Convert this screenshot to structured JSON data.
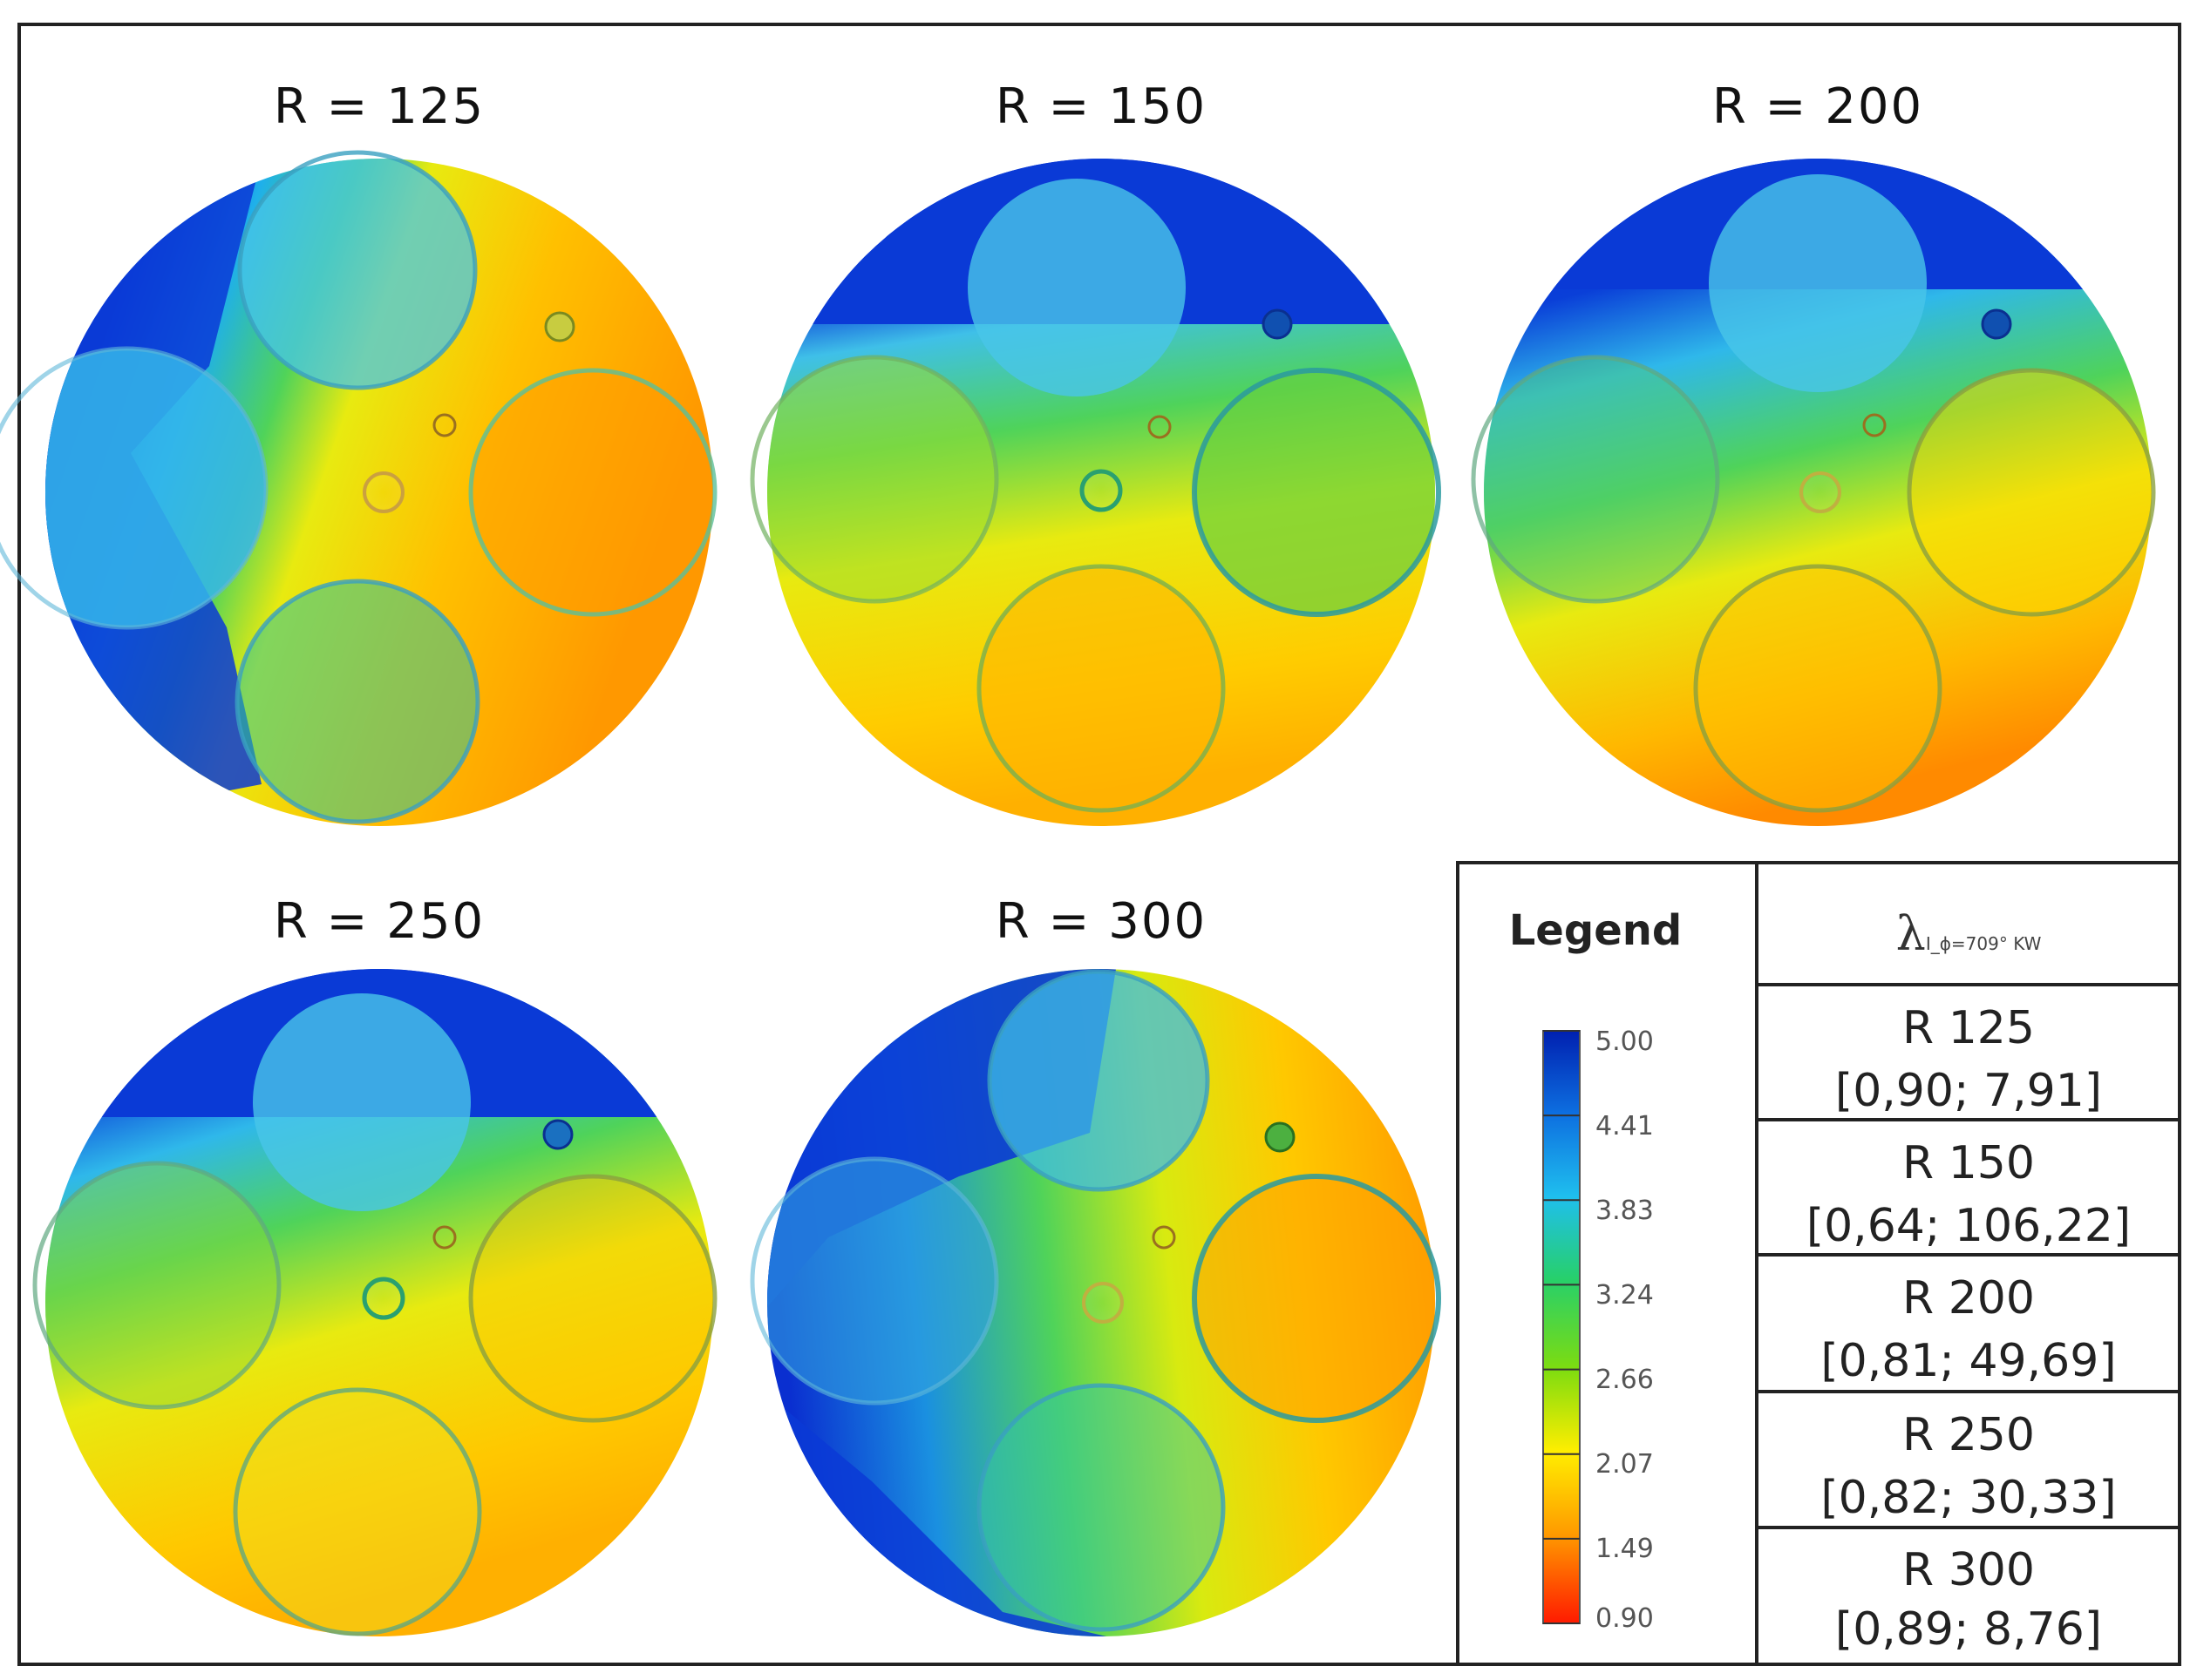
{
  "panels": [
    {
      "title": "R = 125"
    },
    {
      "title": "R = 150"
    },
    {
      "title": "R = 200"
    },
    {
      "title": "R = 250"
    },
    {
      "title": "R = 300"
    }
  ],
  "legend": {
    "title": "Legend",
    "ticks": [
      "5.00",
      "4.41",
      "3.83",
      "3.24",
      "2.66",
      "2.07",
      "1.49",
      "0.90"
    ],
    "colors": [
      "#0033cc",
      "#0d7fe0",
      "#1fc0ee",
      "#27d06a",
      "#7ddc10",
      "#ffee00",
      "#ff9a00",
      "#ff1a00"
    ]
  },
  "table": {
    "header_symbol": "λ",
    "header_subscript": "I_ϕ=709° KW",
    "rows": [
      {
        "name": "R 125",
        "range": "[0,90; 7,91]"
      },
      {
        "name": "R 150",
        "range": "[0,64; 106,22]"
      },
      {
        "name": "R 200",
        "range": "[0,81; 49,69]"
      },
      {
        "name": "R 250",
        "range": "[0,82; 30,33]"
      },
      {
        "name": "R 300",
        "range": "[0,89; 8,76]"
      }
    ]
  }
}
